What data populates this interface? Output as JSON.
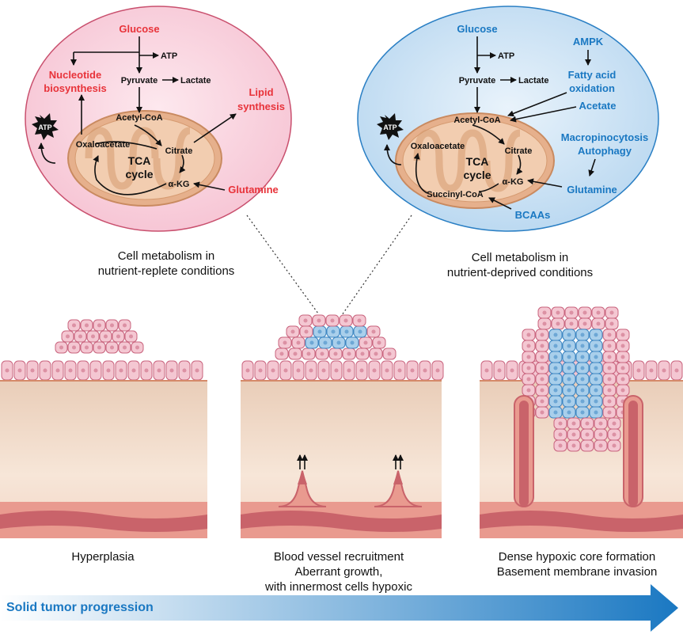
{
  "left_cell": {
    "glucose": "Glucose",
    "atp_top": "ATP",
    "pyruvate": "Pyruvate",
    "lactate": "Lactate",
    "nucleotide": [
      "Nucleotide",
      "biosynthesis"
    ],
    "lipid": [
      "Lipid",
      "synthesis"
    ],
    "acetyl_coa": "Acetyl-CoA",
    "atp_burst": "ATP",
    "oxaloacetate": "Oxaloacetate",
    "citrate": "Citrate",
    "tca": [
      "TCA",
      "cycle"
    ],
    "akg": "α-KG",
    "glutamine": "Glutamine",
    "caption": [
      "Cell metabolism in",
      "nutrient-replete conditions"
    ]
  },
  "right_cell": {
    "glucose": "Glucose",
    "atp_top": "ATP",
    "pyruvate": "Pyruvate",
    "lactate": "Lactate",
    "ampk": "AMPK",
    "fatty_acid": [
      "Fatty acid",
      "oxidation"
    ],
    "acetate": "Acetate",
    "acetyl_coa": "Acetyl-CoA",
    "atp_burst": "ATP",
    "oxaloacetate": "Oxaloacetate",
    "citrate": "Citrate",
    "tca": [
      "TCA",
      "cycle"
    ],
    "akg": "α-KG",
    "succinyl": "Succinyl-CoA",
    "macro": [
      "Macropinocytosis",
      "Autophagy"
    ],
    "glutamine": "Glutamine",
    "bcaas": "BCAAs",
    "caption": [
      "Cell metabolism in",
      "nutrient-deprived conditions"
    ]
  },
  "stages": [
    {
      "caption": [
        "Hyperplasia"
      ]
    },
    {
      "caption": [
        "Blood vessel recruitment",
        "Aberrant growth,",
        "with innermost cells hypoxic"
      ]
    },
    {
      "caption": [
        "Dense hypoxic core formation",
        "Basement membrane invasion"
      ]
    }
  ],
  "progression_label": "Solid tumor progression",
  "colors": {
    "red_text": "#e8333a",
    "blue_text": "#1a78c2",
    "left_cell_fill": "#fbd9e3",
    "right_cell_fill": "#d6e9f7",
    "mito_fill": "#e6b08c",
    "tissue": "#f4dccb",
    "cell_pink": "#f4c7d2",
    "cell_blue": "#a9cfeb",
    "vessel": "#c9636a"
  }
}
